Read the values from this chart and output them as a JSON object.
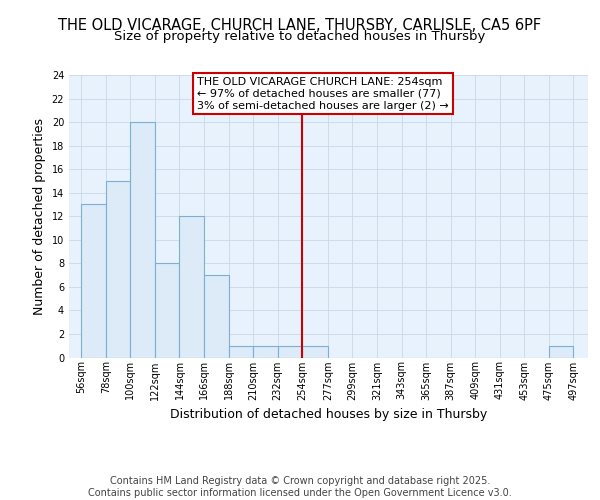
{
  "title_line1": "THE OLD VICARAGE, CHURCH LANE, THURSBY, CARLISLE, CA5 6PF",
  "title_line2": "Size of property relative to detached houses in Thursby",
  "xlabel": "Distribution of detached houses by size in Thursby",
  "ylabel": "Number of detached properties",
  "bar_left_edges": [
    56,
    78,
    100,
    122,
    144,
    166,
    188,
    210,
    232,
    254,
    277,
    299,
    321,
    343,
    365,
    387,
    409,
    431,
    453,
    475
  ],
  "bar_widths": [
    22,
    22,
    22,
    22,
    22,
    22,
    22,
    22,
    22,
    23,
    22,
    22,
    22,
    22,
    22,
    22,
    22,
    22,
    22,
    22
  ],
  "bar_heights": [
    13,
    15,
    20,
    8,
    12,
    7,
    1,
    1,
    1,
    1,
    0,
    0,
    0,
    0,
    0,
    0,
    0,
    0,
    0,
    1
  ],
  "bar_color": "#ddeaf7",
  "bar_edge_color": "#7bafd4",
  "grid_color": "#c8d8e8",
  "background_color": "#e8f2fc",
  "vline_x": 254,
  "vline_color": "#cc0000",
  "annotation_text": "THE OLD VICARAGE CHURCH LANE: 254sqm\n← 97% of detached houses are smaller (77)\n3% of semi-detached houses are larger (2) →",
  "annotation_box_color": "#cc0000",
  "annotation_bg_color": "#ffffff",
  "xtick_labels": [
    "56sqm",
    "78sqm",
    "100sqm",
    "122sqm",
    "144sqm",
    "166sqm",
    "188sqm",
    "210sqm",
    "232sqm",
    "254sqm",
    "277sqm",
    "299sqm",
    "321sqm",
    "343sqm",
    "365sqm",
    "387sqm",
    "409sqm",
    "431sqm",
    "453sqm",
    "475sqm",
    "497sqm"
  ],
  "xtick_positions": [
    56,
    78,
    100,
    122,
    144,
    166,
    188,
    210,
    232,
    254,
    277,
    299,
    321,
    343,
    365,
    387,
    409,
    431,
    453,
    475,
    497
  ],
  "ylim": [
    0,
    24
  ],
  "xlim": [
    45,
    510
  ],
  "ytick_values": [
    0,
    2,
    4,
    6,
    8,
    10,
    12,
    14,
    16,
    18,
    20,
    22,
    24
  ],
  "footer_text": "Contains HM Land Registry data © Crown copyright and database right 2025.\nContains public sector information licensed under the Open Government Licence v3.0.",
  "title_fontsize": 10.5,
  "subtitle_fontsize": 9.5,
  "axis_label_fontsize": 9,
  "tick_fontsize": 7,
  "footer_fontsize": 7,
  "annot_fontsize": 8
}
